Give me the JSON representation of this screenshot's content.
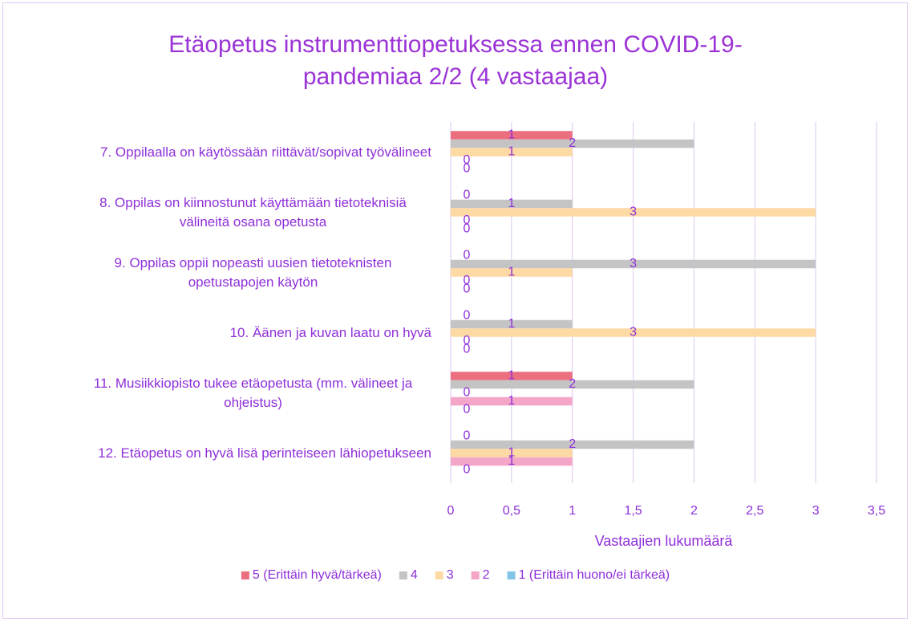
{
  "chart_data": {
    "type": "hbar",
    "title": "Etäopetus instrumenttiopetuksessa ennen COVID-19-pandemiaa 2/2 (4 vastaajaa)",
    "xlabel": "Vastaajien lukumäärä",
    "categories": [
      "7. Oppilaalla on käytössään riittävät/sopivat työvälineet",
      "8. Oppilas on kiinnostunut käyttämään tietoteknisiä välineitä osana opetusta",
      "9. Oppilas oppii nopeasti uusien tietoteknisten opetustapojen käytön",
      "10. Äänen ja kuvan laatu on hyvä",
      "11. Musiikkiopisto tukee etäopetusta (mm. välineet ja ohjeistus)",
      "12. Etäopetus on hyvä lisä perinteiseen lähiopetukseen"
    ],
    "series": [
      {
        "name": "5 (Erittäin hyvä/tärkeä)",
        "color": "#ec6f80",
        "values": [
          1,
          0,
          0,
          0,
          1,
          0
        ]
      },
      {
        "name": "4",
        "color": "#c4c4c4",
        "values": [
          2,
          1,
          3,
          1,
          2,
          2
        ]
      },
      {
        "name": "3",
        "color": "#fdd9a3",
        "values": [
          1,
          3,
          1,
          3,
          0,
          1
        ]
      },
      {
        "name": "2",
        "color": "#f4a6c8",
        "values": [
          0,
          0,
          0,
          0,
          1,
          1
        ]
      },
      {
        "name": "1 (Erittäin huono/ei tärkeä)",
        "color": "#82c4e8",
        "values": [
          0,
          0,
          0,
          0,
          0,
          0
        ]
      }
    ],
    "xlim": [
      0,
      3.5
    ],
    "xticks": [
      0,
      {
        "value": 0.5,
        "label": "0,5"
      },
      1,
      {
        "value": 1.5,
        "label": "1,5"
      },
      2,
      {
        "value": 2.5,
        "label": "2,5"
      },
      3,
      {
        "value": 3.5,
        "label": "3,5"
      }
    ],
    "grid": true,
    "legend": "bottom"
  }
}
